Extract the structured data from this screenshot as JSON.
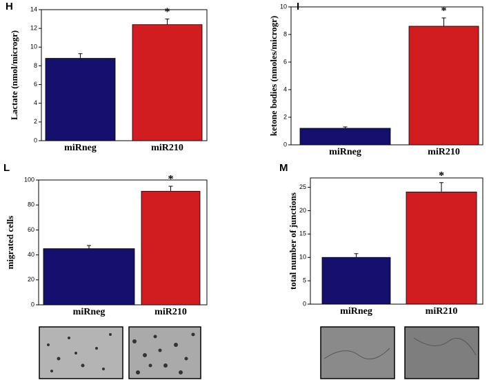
{
  "chart_data": [
    {
      "type": "bar",
      "panel": "H",
      "y_label": "Lactate (nmol/microgr)",
      "categories": [
        "miRneg",
        "miR210"
      ],
      "values": [
        8.8,
        12.4
      ],
      "errors": [
        0.5,
        0.6
      ],
      "colors": [
        "#15106d",
        "#d11c20"
      ],
      "annotation": "*",
      "ylim": [
        0,
        14
      ],
      "yticks": [
        0,
        2,
        4,
        6,
        8,
        10,
        12,
        14
      ]
    },
    {
      "type": "bar",
      "panel": "I",
      "y_label": "ketone bodies (nmoles/microgr)",
      "categories": [
        "miRneg",
        "miR210"
      ],
      "values": [
        1.2,
        8.6
      ],
      "errors": [
        0.1,
        0.6
      ],
      "colors": [
        "#15106d",
        "#d11c20"
      ],
      "annotation": "*",
      "ylim": [
        0,
        10
      ],
      "yticks": [
        0,
        2,
        4,
        6,
        8,
        10
      ]
    },
    {
      "type": "bar",
      "panel": "L",
      "y_label": "migrated cells",
      "categories": [
        "miRneg",
        "miR210"
      ],
      "values": [
        45,
        91
      ],
      "errors": [
        2.5,
        4
      ],
      "colors": [
        "#15106d",
        "#d11c20"
      ],
      "annotation": "*",
      "ylim": [
        0,
        100
      ],
      "yticks": [
        0,
        20,
        40,
        60,
        80,
        100
      ]
    },
    {
      "type": "bar",
      "panel": "M",
      "y_label": "total number of junctions",
      "categories": [
        "miRneg",
        "miR210"
      ],
      "values": [
        10,
        24
      ],
      "errors": [
        0.8,
        2
      ],
      "colors": [
        "#15106d",
        "#d11c20"
      ],
      "annotation": "*",
      "ylim": [
        0,
        27
      ],
      "yticks": [
        0,
        5,
        10,
        15,
        20,
        25
      ]
    }
  ]
}
